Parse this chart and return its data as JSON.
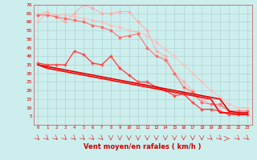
{
  "background_color": "#cceeed",
  "grid_color": "#aacccc",
  "x_labels": [
    "0",
    "1",
    "2",
    "3",
    "4",
    "5",
    "6",
    "7",
    "8",
    "9",
    "10",
    "11",
    "12",
    "13",
    "14",
    "15",
    "16",
    "17",
    "18",
    "19",
    "20",
    "21",
    "22",
    "23"
  ],
  "xlabel": "Vent moyen/en rafales ( km/h )",
  "ylim": [
    0,
    70
  ],
  "yticks": [
    0,
    5,
    10,
    15,
    20,
    25,
    30,
    35,
    40,
    45,
    50,
    55,
    60,
    65,
    70
  ],
  "line_upper1_color": "#ffaaaa",
  "line_upper2_color": "#ffbbbb",
  "line_mid1_color": "#ff6666",
  "line_mid2_color": "#ff4444",
  "line_lower1_color": "#dd0000",
  "line_lower2_color": "#ff0000",
  "line_upper1_data": [
    64,
    66,
    63,
    60,
    65,
    70,
    68,
    65,
    65,
    66,
    66,
    60,
    55,
    43,
    40,
    30,
    25,
    20,
    15,
    12,
    11,
    8,
    8,
    8
  ],
  "line_upper2_data": [
    60,
    65,
    64,
    64,
    63,
    62,
    61,
    60,
    58,
    57,
    55,
    54,
    52,
    48,
    44,
    40,
    35,
    30,
    25,
    20,
    16,
    12,
    10,
    10
  ],
  "line_mid1_data": [
    64,
    64,
    63,
    62,
    61,
    60,
    58,
    57,
    55,
    51,
    52,
    53,
    45,
    40,
    38,
    30,
    22,
    19,
    13,
    12,
    12,
    8,
    8,
    8
  ],
  "line_mid2_data": [
    36,
    35,
    35,
    35,
    43,
    41,
    36,
    35,
    40,
    33,
    29,
    25,
    25,
    22,
    20,
    17,
    18,
    13,
    9,
    9,
    8,
    6,
    6,
    6
  ],
  "line_lower1_data": [
    35,
    34,
    33,
    32,
    31,
    30,
    29,
    28,
    27,
    26,
    25,
    24,
    23,
    22,
    21,
    20,
    19,
    18,
    17,
    16,
    15,
    8,
    7,
    7
  ],
  "line_lower2_data": [
    35,
    33,
    32,
    31,
    30,
    29,
    28,
    27,
    26,
    25,
    24,
    23,
    22,
    21,
    20,
    19,
    18,
    17,
    16,
    15,
    7,
    7,
    6,
    6
  ]
}
